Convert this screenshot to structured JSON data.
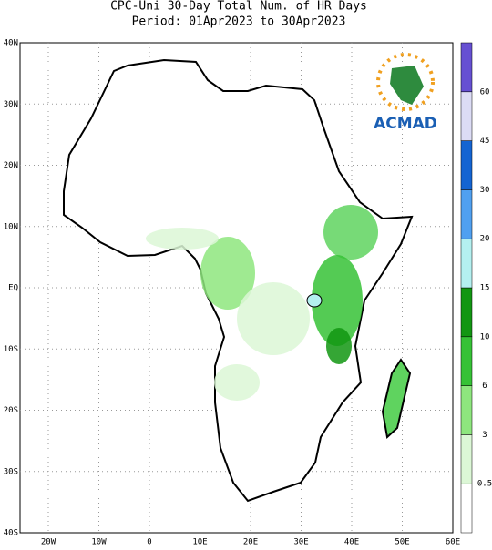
{
  "header": {
    "title": "CPC-Uni 30-Day Total Num. of HR Days",
    "period": "Period: 01Apr2023 to 30Apr2023"
  },
  "map": {
    "lat_labels": [
      "40N",
      "30N",
      "20N",
      "10N",
      "EQ",
      "10S",
      "20S",
      "30S",
      "40S"
    ],
    "lon_labels": [
      "20W",
      "10W",
      "0",
      "10E",
      "20E",
      "30E",
      "40E",
      "50E",
      "60E"
    ]
  },
  "logo": {
    "text": "ACMAD"
  },
  "colorbar": {
    "labels": [
      "0.5",
      "3",
      "6",
      "10",
      "15",
      "20",
      "30",
      "45",
      "60"
    ],
    "colors": [
      "#ffffff",
      "#dcf7d6",
      "#8ee67e",
      "#36c236",
      "#129612",
      "#b4f0f0",
      "#50a0f0",
      "#1464d2",
      "#dcdcf5",
      "#a09ef0",
      "#6650d2"
    ]
  }
}
